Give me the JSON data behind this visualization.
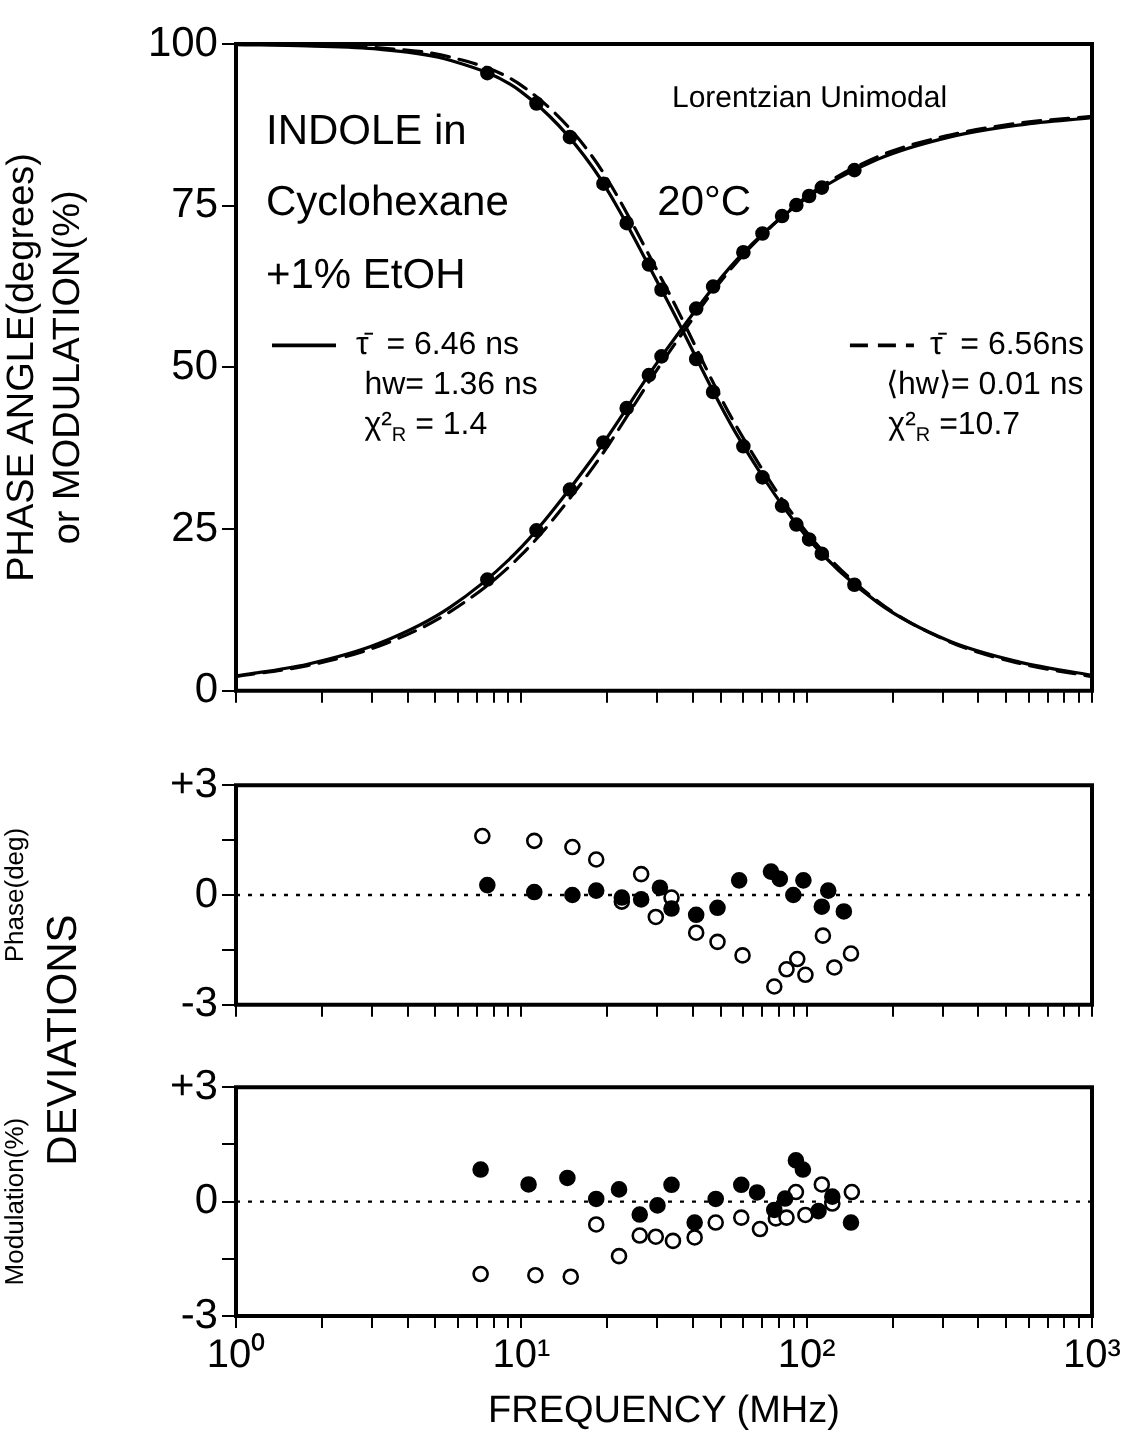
{
  "chart_data": [
    {
      "type": "line",
      "ylabel": "PHASE ANGLE(degrees)\nor MODULATION(%)",
      "log": "x",
      "xlim": [
        1,
        1000
      ],
      "ylim": [
        0,
        100
      ],
      "yticks": [
        0,
        25,
        50,
        75,
        100
      ],
      "xticks": [
        {
          "value": 1,
          "label": null
        },
        {
          "value": 2,
          "label": null
        },
        {
          "value": 3,
          "label": null
        },
        {
          "value": 4,
          "label": null
        },
        {
          "value": 5,
          "label": null
        },
        {
          "value": 6,
          "label": null
        },
        {
          "value": 7,
          "label": null
        },
        {
          "value": 8,
          "label": null
        },
        {
          "value": 9,
          "label": null
        },
        {
          "value": 10,
          "label": null
        },
        {
          "value": 20,
          "label": null
        },
        {
          "value": 30,
          "label": null
        },
        {
          "value": 40,
          "label": null
        },
        {
          "value": 50,
          "label": null
        },
        {
          "value": 60,
          "label": null
        },
        {
          "value": 70,
          "label": null
        },
        {
          "value": 80,
          "label": null
        },
        {
          "value": 90,
          "label": null
        },
        {
          "value": 100,
          "label": null
        },
        {
          "value": 200,
          "label": null
        },
        {
          "value": 300,
          "label": null
        },
        {
          "value": 400,
          "label": null
        },
        {
          "value": 500,
          "label": null
        },
        {
          "value": 600,
          "label": null
        },
        {
          "value": 700,
          "label": null
        },
        {
          "value": 800,
          "label": null
        },
        {
          "value": 900,
          "label": null
        },
        {
          "value": 1000,
          "label": null
        }
      ],
      "tick_labels": "y",
      "grid": false,
      "legend": "center",
      "annotations": [
        "Lorentzian Unimodal",
        "INDOLE in",
        "Cyclohexane",
        "+1% EtOH",
        "20°C",
        "hw= 1.36 ns",
        "χ²$_{R}$ = 1.4",
        "⟨hw⟩= 0.01 ns",
        "χ²$_{R}$ =10.7"
      ],
      "series": [
        {
          "name": "τ̄  = 6.46 ns",
          "line_style": "solid",
          "marker": "none",
          "color": "#000000",
          "x": [
            1,
            1.78,
            3.16,
            5.62,
            10,
            17.8,
            31.6,
            56.2,
            100,
            178,
            316,
            562,
            1000
          ],
          "values": [
            2.3,
            4.1,
            7.3,
            12.9,
            22.2,
            36.0,
            52.2,
            66.4,
            76.2,
            82.2,
            85.6,
            87.5,
            88.6
          ]
        },
        {
          "line_style": "solid",
          "marker": "none",
          "color": "#000000",
          "x": [
            1,
            1.78,
            3.16,
            5.62,
            10,
            17.8,
            31.6,
            56.2,
            100,
            178,
            316,
            562,
            1000
          ],
          "values": [
            99.9,
            99.7,
            99.2,
            97.5,
            92.6,
            80.9,
            61.3,
            40.0,
            23.8,
            13.6,
            7.7,
            4.4,
            2.4
          ]
        },
        {
          "name": "τ̄  = 6.56ns",
          "line_style": "dashed",
          "marker": "none",
          "color": "#000000",
          "x": [
            1,
            1.78,
            3.16,
            5.62,
            10,
            17.8,
            31.6,
            56.2,
            100,
            178,
            316,
            562,
            1000
          ],
          "values": [
            2.2,
            3.9,
            6.9,
            12.2,
            21.0,
            34.5,
            51.2,
            66.0,
            76.4,
            82.6,
            85.9,
            87.8,
            88.8
          ]
        },
        {
          "line_style": "dashed",
          "marker": "none",
          "color": "#000000",
          "x": [
            1,
            1.78,
            3.16,
            5.62,
            10,
            17.8,
            31.6,
            56.2,
            100,
            178,
            316,
            562,
            1000
          ],
          "values": [
            100,
            99.8,
            99.4,
            98.0,
            93.6,
            82.5,
            63.0,
            41.2,
            24.5,
            13.8,
            7.6,
            4.2,
            2.2
          ]
        },
        {
          "type": "scatter",
          "marker": "circle",
          "color": "#000000",
          "x": [
            7.6,
            11.3,
            14.8,
            19.4,
            23.4,
            28,
            31,
            41,
            47,
            60,
            70,
            82,
            92,
            102,
            113,
            147
          ],
          "values": [
            17.2,
            24.8,
            31.1,
            38.4,
            43.7,
            48.8,
            51.7,
            59.1,
            62.5,
            67.8,
            70.7,
            73.4,
            75.1,
            76.5,
            77.8,
            80.5
          ]
        },
        {
          "type": "scatter",
          "marker": "circle",
          "color": "#000000",
          "x": [
            7.6,
            11.3,
            14.8,
            19.4,
            23.4,
            28,
            31,
            41,
            47,
            60,
            70,
            82,
            92,
            102,
            113,
            147
          ],
          "values": [
            95.5,
            90.8,
            85.6,
            78.4,
            72.3,
            65.9,
            62.0,
            51.3,
            46.2,
            37.8,
            33.0,
            28.6,
            25.7,
            23.4,
            21.2,
            16.4
          ]
        }
      ]
    },
    {
      "type": "scatter",
      "ylabel": "Phase(deg)",
      "log": "x",
      "xlim": [
        1,
        1000
      ],
      "ylim": [
        -3,
        3
      ],
      "yticks": [
        {
          "value": -3,
          "label": "-3"
        },
        {
          "value": -1.5,
          "label": null
        },
        0,
        {
          "value": 1.5,
          "label": null
        },
        {
          "value": 3,
          "label": "+3"
        }
      ],
      "xticks": [
        {
          "value": 1,
          "label": null
        },
        {
          "value": 2,
          "label": null
        },
        {
          "value": 3,
          "label": null
        },
        {
          "value": 4,
          "label": null
        },
        {
          "value": 5,
          "label": null
        },
        {
          "value": 6,
          "label": null
        },
        {
          "value": 7,
          "label": null
        },
        {
          "value": 8,
          "label": null
        },
        {
          "value": 9,
          "label": null
        },
        {
          "value": 10,
          "label": null
        },
        {
          "value": 20,
          "label": null
        },
        {
          "value": 30,
          "label": null
        },
        {
          "value": 40,
          "label": null
        },
        {
          "value": 50,
          "label": null
        },
        {
          "value": 60,
          "label": null
        },
        {
          "value": 70,
          "label": null
        },
        {
          "value": 80,
          "label": null
        },
        {
          "value": 90,
          "label": null
        },
        {
          "value": 100,
          "label": null
        },
        {
          "value": 200,
          "label": null
        },
        {
          "value": 300,
          "label": null
        },
        {
          "value": 400,
          "label": null
        },
        {
          "value": 500,
          "label": null
        },
        {
          "value": 600,
          "label": null
        },
        {
          "value": 700,
          "label": null
        },
        {
          "value": 800,
          "label": null
        },
        {
          "value": 900,
          "label": null
        },
        {
          "value": 1000,
          "label": null
        }
      ],
      "tick_labels": "y",
      "grid": false,
      "annotations": [
        "DEVIATIONS"
      ],
      "ref_lines": [
        {
          "axis": "y",
          "value": 0,
          "line_style": "dotted",
          "color": "#000000"
        }
      ],
      "series": [
        {
          "marker": "circle",
          "color": "#000000",
          "x": [
            7.6,
            11.1,
            15.1,
            18.3,
            22.5,
            26.3,
            30.6,
            33.6,
            41,
            48.7,
            58,
            75,
            80.5,
            89.8,
            97.4,
            113,
            119,
            135
          ],
          "values": [
            0.27,
            0.08,
            0,
            0.12,
            -0.07,
            -0.12,
            0.2,
            -0.37,
            -0.54,
            -0.35,
            0.4,
            0.64,
            0.44,
            0,
            0.4,
            -0.32,
            0.12,
            -0.45
          ]
        },
        {
          "marker": "circle",
          "color": "#ffffff",
          "x": [
            7.3,
            11.1,
            15.1,
            18.3,
            22.5,
            26.3,
            29.6,
            33.6,
            41,
            48.7,
            59.6,
            77,
            85,
            92.7,
            99,
            114,
            125,
            143
          ],
          "values": [
            1.61,
            1.48,
            1.31,
            0.97,
            -0.18,
            0.57,
            -0.6,
            -0.07,
            -1.03,
            -1.28,
            -1.65,
            -2.5,
            -2.03,
            -1.75,
            -2.18,
            -1.11,
            -1.98,
            -1.6
          ]
        }
      ]
    },
    {
      "type": "scatter",
      "ylabel": "Modulation(%)",
      "xlabel": "FREQUENCY (MHz)",
      "log": "x",
      "xlim": [
        1,
        1000
      ],
      "ylim": [
        -3,
        3
      ],
      "yticks": [
        {
          "value": -3,
          "label": "-3"
        },
        {
          "value": -1.5,
          "label": null
        },
        0,
        {
          "value": 1.5,
          "label": null
        },
        {
          "value": 3,
          "label": "+3"
        }
      ],
      "xticks": [
        {
          "value": 1,
          "label": "10⁰"
        },
        {
          "value": 2,
          "label": null
        },
        {
          "value": 3,
          "label": null
        },
        {
          "value": 4,
          "label": null
        },
        {
          "value": 5,
          "label": null
        },
        {
          "value": 6,
          "label": null
        },
        {
          "value": 7,
          "label": null
        },
        {
          "value": 8,
          "label": null
        },
        {
          "value": 9,
          "label": null
        },
        {
          "value": 10,
          "label": "10¹"
        },
        {
          "value": 20,
          "label": null
        },
        {
          "value": 30,
          "label": null
        },
        {
          "value": 40,
          "label": null
        },
        {
          "value": 50,
          "label": null
        },
        {
          "value": 60,
          "label": null
        },
        {
          "value": 70,
          "label": null
        },
        {
          "value": 80,
          "label": null
        },
        {
          "value": 90,
          "label": null
        },
        {
          "value": 100,
          "label": "10²"
        },
        {
          "value": 200,
          "label": null
        },
        {
          "value": 300,
          "label": null
        },
        {
          "value": 400,
          "label": null
        },
        {
          "value": 500,
          "label": null
        },
        {
          "value": 600,
          "label": null
        },
        {
          "value": 700,
          "label": null
        },
        {
          "value": 800,
          "label": null
        },
        {
          "value": 900,
          "label": null
        },
        {
          "value": 1000,
          "label": "10³"
        }
      ],
      "grid": false,
      "ref_lines": [
        {
          "axis": "y",
          "value": 0,
          "line_style": "dotted",
          "color": "#000000"
        }
      ],
      "series": [
        {
          "marker": "circle",
          "color": "#000000",
          "x": [
            7.2,
            10.6,
            14.5,
            18.3,
            22,
            26,
            30,
            33.6,
            40.5,
            48,
            59,
            67,
            77,
            84,
            91.7,
            97,
            110,
            123,
            143
          ],
          "values": [
            0.84,
            0.45,
            0.62,
            0.07,
            0.32,
            -0.34,
            -0.1,
            0.44,
            -0.55,
            0.07,
            0.44,
            0.24,
            -0.22,
            0.08,
            1.08,
            0.84,
            -0.25,
            0.13,
            -0.55
          ]
        },
        {
          "marker": "circle",
          "color": "#ffffff",
          "x": [
            7.2,
            11.2,
            14.9,
            18.3,
            22,
            26,
            29.6,
            34,
            40.5,
            48,
            59,
            68.6,
            78,
            85,
            91.7,
            99,
            113,
            123,
            144
          ],
          "values": [
            -1.9,
            -1.93,
            -1.97,
            -0.6,
            -1.43,
            -0.89,
            -0.92,
            -1.03,
            -0.94,
            -0.55,
            -0.42,
            -0.72,
            -0.44,
            -0.42,
            0.25,
            -0.35,
            0.45,
            -0.05,
            0.25
          ]
        }
      ]
    }
  ]
}
